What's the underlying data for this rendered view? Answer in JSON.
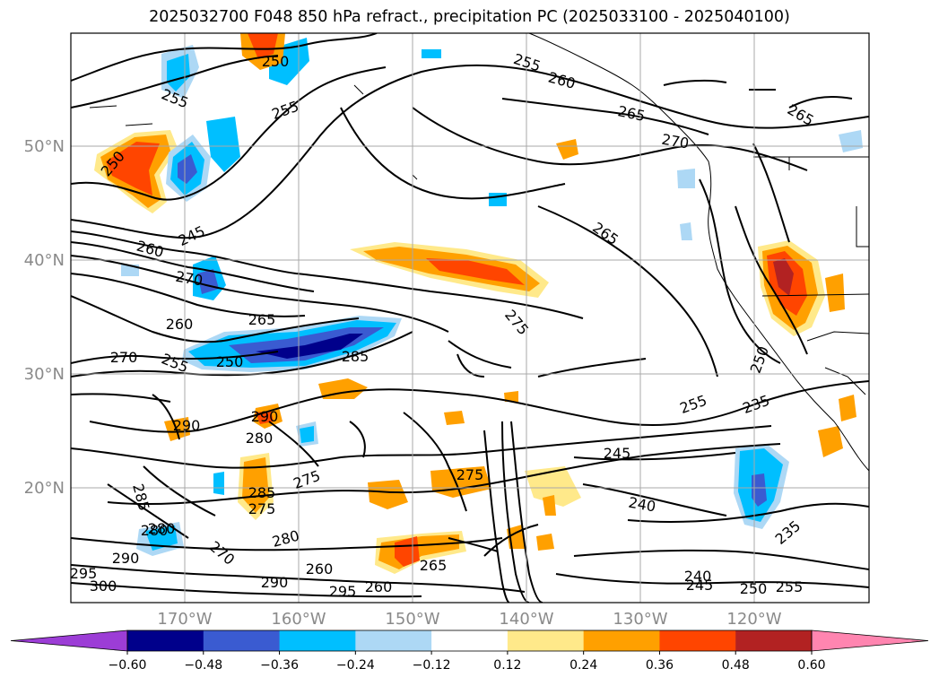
{
  "title": "2025032700 F048 850 hPa refract., precipitation PC (2025033100 - 2025040100)",
  "lat_labels": [
    "50°N",
    "40°N",
    "30°N",
    "20°N"
  ],
  "lon_labels": [
    "170°W",
    "160°W",
    "150°W",
    "140°W",
    "130°W",
    "120°W"
  ],
  "colorbar": {
    "levels": [
      "−0.60",
      "−0.48",
      "−0.36",
      "−0.24",
      "−0.12",
      "0.12",
      "0.24",
      "0.36",
      "0.48",
      "0.60"
    ],
    "colors": [
      "#9c3dd6",
      "#00008b",
      "#3a5bd1",
      "#00bfff",
      "#add8f5",
      "#ffffff",
      "#ffe98a",
      "#ffa000",
      "#ff4500",
      "#b22222",
      "#ff85b0"
    ]
  },
  "contour_labels": [
    "255",
    "260",
    "265",
    "270",
    "250",
    "255",
    "255",
    "250",
    "245",
    "260",
    "270",
    "260",
    "265",
    "270",
    "255",
    "250",
    "285",
    "275",
    "265",
    "290",
    "280",
    "290",
    "285",
    "275",
    "275",
    "280",
    "260",
    "285",
    "280",
    "270",
    "275",
    "290",
    "295",
    "300",
    "280",
    "290",
    "295",
    "265",
    "260",
    "255",
    "245",
    "240",
    "235",
    "240",
    "245",
    "250",
    "255",
    "235",
    "250",
    "265"
  ]
}
